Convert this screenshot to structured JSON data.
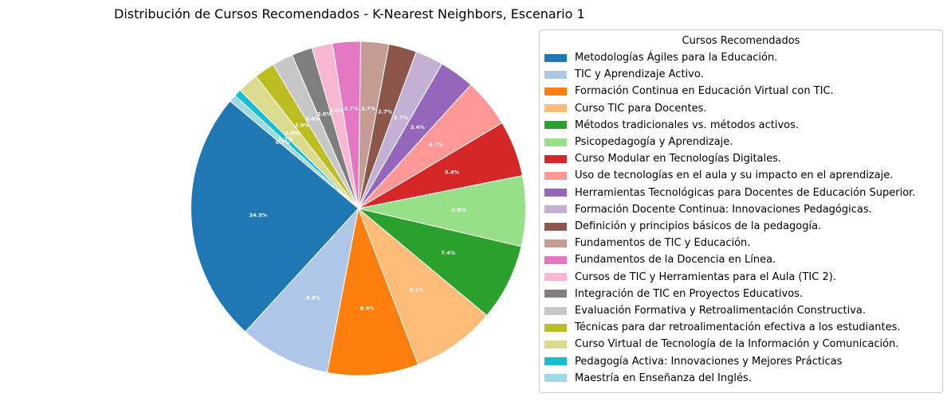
{
  "chart_data": {
    "type": "pie",
    "title": "Distribución de Cursos Recomendados - K-Nearest Neighbors, Escenario 1",
    "legend_title": "Cursos Recomendados",
    "legend_position": "right",
    "start_angle_deg": 140,
    "direction": "counterclockwise",
    "slices": [
      {
        "label": "Metodologías Ágiles para la Educación.",
        "value": 24.3,
        "pct_label": "24.3%",
        "color": "#1f77b4"
      },
      {
        "label": "TIC y Aprendizaje Activo.",
        "value": 8.8,
        "pct_label": "8.8%",
        "color": "#aec7e8"
      },
      {
        "label": "Formación Continua en Educación Virtual con TIC.",
        "value": 8.8,
        "pct_label": "8.8%",
        "color": "#ff7f0e"
      },
      {
        "label": "Curso TIC para Docentes.",
        "value": 8.1,
        "pct_label": "8.1%",
        "color": "#ffbb78"
      },
      {
        "label": "Métodos tradicionales vs. métodos activos.",
        "value": 7.4,
        "pct_label": "7.4%",
        "color": "#2ca02c"
      },
      {
        "label": "Psicopedagogía y Aprendizaje.",
        "value": 6.8,
        "pct_label": "6.8%",
        "color": "#98df8a"
      },
      {
        "label": "Curso Modular en Tecnologías Digitales.",
        "value": 5.4,
        "pct_label": "5.4%",
        "color": "#d62728"
      },
      {
        "label": "Uso de tecnologías en el aula y su impacto en el aprendizaje.",
        "value": 4.7,
        "pct_label": "4.7%",
        "color": "#ff9896"
      },
      {
        "label": "Herramientas Tecnológicas para Docentes de Educación Superior.",
        "value": 3.4,
        "pct_label": "3.4%",
        "color": "#9467bd"
      },
      {
        "label": "Formación Docente Continua: Innovaciones Pedagógicas.",
        "value": 2.7,
        "pct_label": "2.7%",
        "color": "#c5b0d5"
      },
      {
        "label": "Definición y principios básicos de la pedagogía.",
        "value": 2.7,
        "pct_label": "2.7%",
        "color": "#8c564b"
      },
      {
        "label": "Fundamentos de TIC y Educación.",
        "value": 2.7,
        "pct_label": "2.7%",
        "color": "#c49c94"
      },
      {
        "label": "Fundamentos de la Docencia en Línea.",
        "value": 2.7,
        "pct_label": "2.7%",
        "color": "#e377c2"
      },
      {
        "label": "Cursos de TIC y Herramientas para el Aula (TIC 2).",
        "value": 2.0,
        "pct_label": "2.0%",
        "color": "#f7b6d2"
      },
      {
        "label": "Integración de TIC en Proyectos Educativos.",
        "value": 2.0,
        "pct_label": "2.0%",
        "color": "#7f7f7f"
      },
      {
        "label": "Evaluación Formativa y Retroalimentación Constructiva.",
        "value": 2.0,
        "pct_label": "2.0%",
        "color": "#c7c7c7"
      },
      {
        "label": "Técnicas para dar retroalimentación efectiva a los estudiantes.",
        "value": 2.0,
        "pct_label": "2.0%",
        "color": "#bcbd22"
      },
      {
        "label": "Curso Virtual de Tecnología de la Información y Comunicación.",
        "value": 2.0,
        "pct_label": "2.0%",
        "color": "#dbdb8d"
      },
      {
        "label": "Pedagogía Activa: Innovaciones y Mejores Prácticas",
        "value": 0.7,
        "pct_label": "0.7%",
        "color": "#17becf"
      },
      {
        "label": "Maestría en Enseñanza del Inglés.",
        "value": 0.7,
        "pct_label": "0.7%",
        "color": "#9edae5"
      }
    ]
  }
}
